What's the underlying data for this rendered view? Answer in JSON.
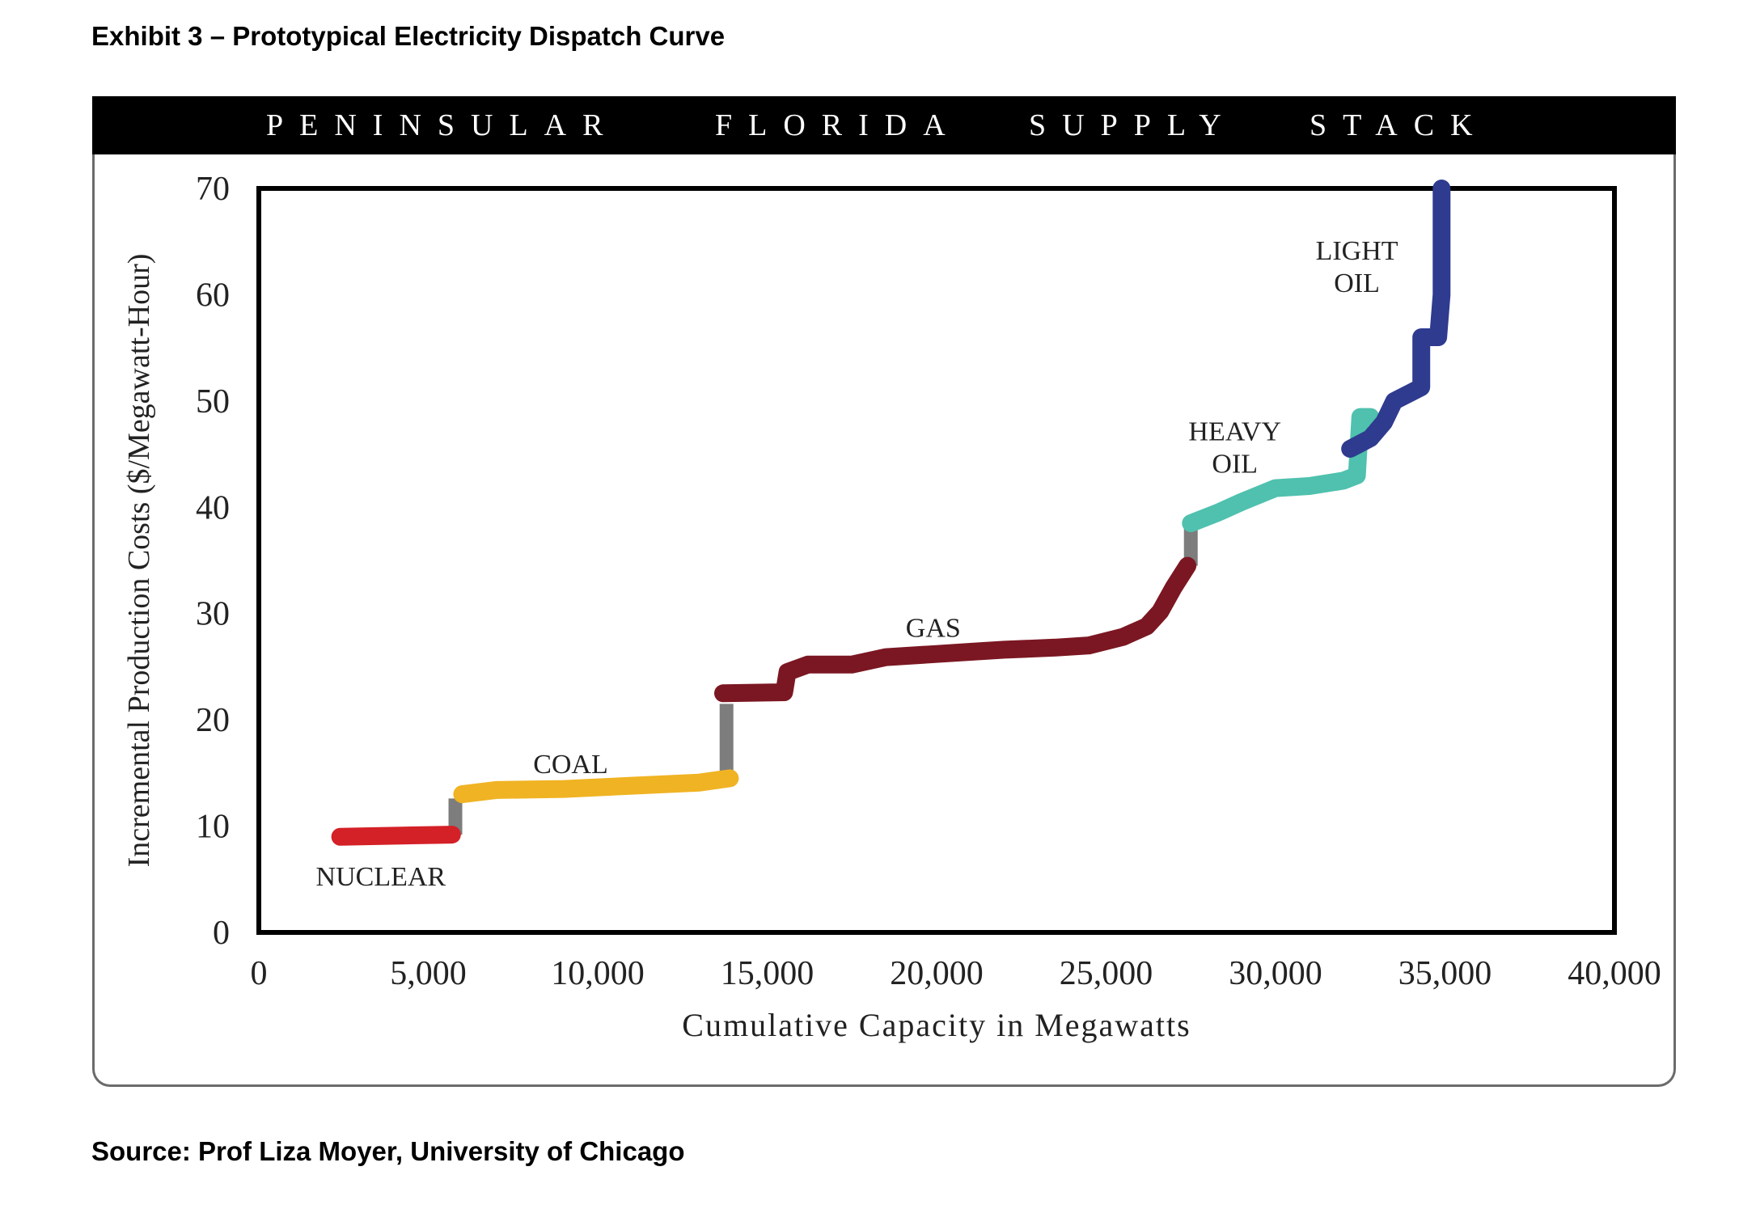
{
  "page": {
    "title": "Exhibit 3 – Prototypical Electricity Dispatch Curve",
    "source": "Source: Prof Liza Moyer, University of Chicago"
  },
  "chart_data": {
    "type": "line",
    "title": "PENINSULAR FLORIDA SUPPLY STACK",
    "title_words": [
      "PENINSULAR",
      "FLORIDA",
      "SUPPLY",
      "STACK"
    ],
    "xlabel": "Cumulative Capacity in Megawatts",
    "ylabel": "Incremental Production Costs ($/Megawatt-Hour)",
    "xlim": [
      0,
      40000
    ],
    "ylim": [
      0,
      70
    ],
    "x_ticks": [
      0,
      5000,
      10000,
      15000,
      20000,
      25000,
      30000,
      35000,
      40000
    ],
    "x_tick_labels": [
      "0",
      "5,000",
      "10,000",
      "15,000",
      "20,000",
      "25,000",
      "30,000",
      "35,000",
      "40,000"
    ],
    "y_ticks": [
      0,
      10,
      20,
      30,
      40,
      50,
      60,
      70
    ],
    "y_tick_labels": [
      "0",
      "10",
      "20",
      "30",
      "40",
      "50",
      "60",
      "70"
    ],
    "grid": false,
    "series": [
      {
        "name": "NUCLEAR",
        "color": "#d42027",
        "points": [
          [
            2400,
            9.0
          ],
          [
            5700,
            9.2
          ]
        ]
      },
      {
        "name": "COAL",
        "color": "#f0b323",
        "points": [
          [
            6000,
            13.0
          ],
          [
            7000,
            13.4
          ],
          [
            9000,
            13.5
          ],
          [
            11000,
            13.8
          ],
          [
            13000,
            14.1
          ],
          [
            13900,
            14.5
          ]
        ]
      },
      {
        "name": "GAS",
        "color": "#7b1722",
        "points": [
          [
            13700,
            22.5
          ],
          [
            15500,
            22.6
          ],
          [
            15600,
            24.5
          ],
          [
            16200,
            25.2
          ],
          [
            17500,
            25.2
          ],
          [
            18500,
            25.9
          ],
          [
            20000,
            26.2
          ],
          [
            21000,
            26.4
          ],
          [
            22000,
            26.6
          ],
          [
            23500,
            26.8
          ],
          [
            24500,
            27.0
          ],
          [
            25500,
            27.8
          ],
          [
            26200,
            28.8
          ],
          [
            26600,
            30.2
          ],
          [
            27000,
            32.5
          ],
          [
            27400,
            34.5
          ]
        ]
      },
      {
        "name": "HEAVY OIL",
        "color": "#4fc1ae",
        "points": [
          [
            27500,
            38.5
          ],
          [
            28300,
            39.5
          ],
          [
            29000,
            40.5
          ],
          [
            30000,
            41.8
          ],
          [
            31000,
            42.0
          ],
          [
            32000,
            42.5
          ],
          [
            32400,
            43.0
          ],
          [
            32500,
            48.5
          ],
          [
            32800,
            48.5
          ]
        ]
      },
      {
        "name": "LIGHT OIL",
        "color": "#2e3b8f",
        "points": [
          [
            32200,
            45.5
          ],
          [
            32800,
            46.5
          ],
          [
            33200,
            48.0
          ],
          [
            33500,
            50.0
          ],
          [
            34000,
            50.8
          ],
          [
            34300,
            51.3
          ],
          [
            34300,
            56.0
          ],
          [
            34800,
            56.0
          ],
          [
            34900,
            60.0
          ],
          [
            34900,
            70.0
          ]
        ]
      }
    ],
    "connectors": [
      {
        "color": "#7d7d7d",
        "x": 5800,
        "y_from": 9.2,
        "y_to": 12.6
      },
      {
        "color": "#7d7d7d",
        "x": 13800,
        "y_from": 14.5,
        "y_to": 21.5
      },
      {
        "color": "#7d7d7d",
        "x": 27500,
        "y_from": 34.5,
        "y_to": 38.2
      }
    ],
    "annotations": [
      {
        "lines": [
          "NUCLEAR"
        ],
        "x": 3600,
        "y": 4.4
      },
      {
        "lines": [
          "COAL"
        ],
        "x": 9200,
        "y": 15.0
      },
      {
        "lines": [
          "GAS"
        ],
        "x": 19900,
        "y": 27.8
      },
      {
        "lines": [
          "HEAVY",
          "OIL"
        ],
        "x": 28800,
        "y": 46.3
      },
      {
        "lines": [
          "LIGHT",
          "OIL"
        ],
        "x": 32400,
        "y": 63.3
      }
    ]
  }
}
